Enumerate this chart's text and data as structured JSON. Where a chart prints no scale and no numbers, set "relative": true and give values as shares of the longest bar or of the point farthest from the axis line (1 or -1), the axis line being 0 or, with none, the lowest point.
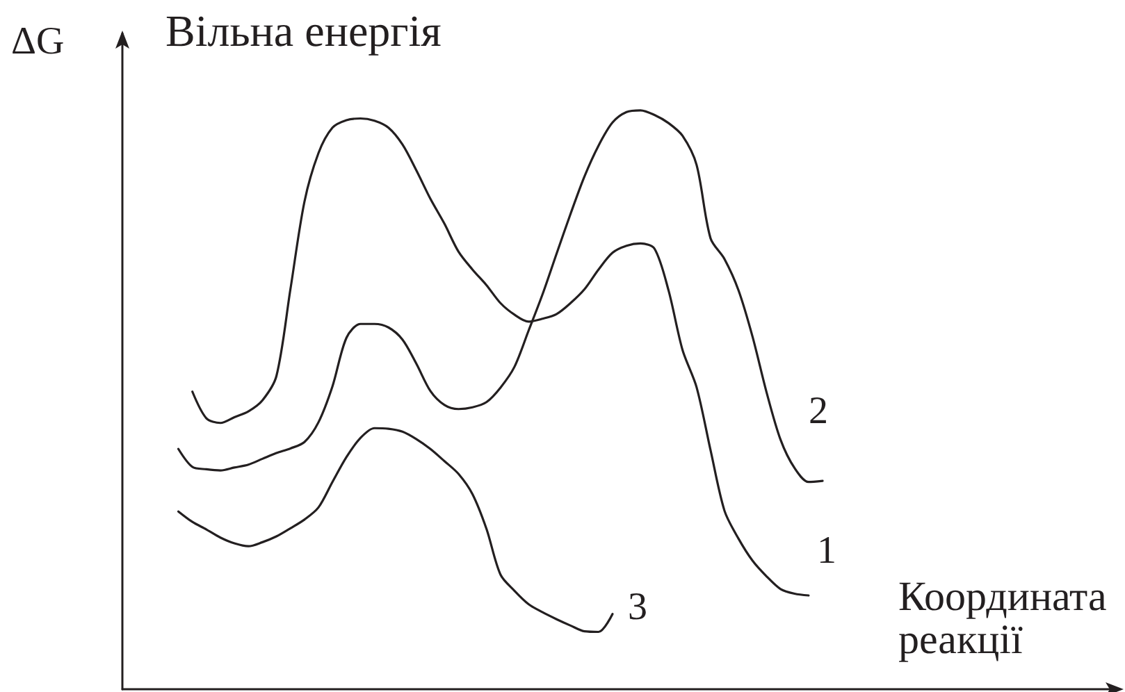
{
  "chart_data": {
    "type": "line",
    "title": "Вільна енергія",
    "ylabel": "ΔG",
    "xlabel": "Координата реакції",
    "relative": true,
    "legend": false,
    "grid": false,
    "tick_labels": false,
    "marker": "none",
    "line_style": "solid",
    "categories": [
      null,
      null,
      null,
      null,
      null,
      null,
      null,
      null,
      null,
      null,
      null,
      null,
      null,
      null,
      null,
      null,
      null,
      null,
      null,
      null,
      null,
      null,
      null,
      null,
      null,
      null,
      null,
      null,
      null,
      null,
      null,
      null,
      null,
      null,
      null,
      null,
      null,
      null,
      null,
      null,
      null,
      null,
      null,
      null,
      null,
      null,
      null,
      null,
      null,
      null,
      null,
      null,
      null,
      null,
      null,
      null,
      null,
      null,
      null,
      null,
      null,
      null,
      null,
      null,
      null,
      null,
      null,
      null,
      null,
      null,
      null,
      null
    ],
    "series": [
      {
        "name": "1",
        "color": "#231f20",
        "values": [
          null,
          null,
          null,
          null,
          null,
          0.514,
          0.468,
          0.46,
          0.47,
          0.48,
          0.499,
          0.541,
          0.691,
          0.842,
          0.926,
          0.97,
          0.983,
          0.986,
          0.982,
          0.97,
          0.941,
          0.896,
          0.847,
          0.804,
          0.756,
          0.725,
          0.698,
          0.667,
          0.647,
          0.635,
          0.64,
          0.648,
          0.667,
          0.691,
          0.725,
          0.754,
          0.766,
          0.77,
          0.761,
          0.689,
          0.586,
          0.522,
          0.413,
          0.308,
          0.26,
          0.222,
          0.195,
          0.173,
          0.165,
          0.162,
          null,
          null,
          null,
          null,
          null,
          null,
          null,
          null,
          null,
          null,
          null,
          null,
          null,
          null,
          null,
          null,
          null,
          null,
          null,
          null,
          null,
          null
        ]
      },
      {
        "name": "2",
        "color": "#231f20",
        "values": [
          null,
          null,
          null,
          null,
          0.415,
          0.384,
          0.38,
          0.378,
          0.383,
          0.388,
          0.398,
          0.408,
          0.416,
          0.427,
          0.461,
          0.523,
          0.607,
          0.631,
          0.631,
          0.625,
          0.604,
          0.562,
          0.515,
          0.491,
          0.484,
          0.487,
          0.496,
          0.521,
          0.557,
          0.619,
          0.682,
          0.752,
          0.821,
          0.886,
          0.939,
          0.979,
          0.997,
          1.0,
          0.992,
          0.978,
          0.956,
          0.906,
          0.779,
          0.743,
          0.689,
          0.609,
          0.513,
          0.431,
          0.382,
          0.358,
          0.36,
          null,
          null,
          null,
          null,
          null,
          null,
          null,
          null,
          null,
          null,
          null,
          null,
          null,
          null,
          null,
          null,
          null,
          null,
          null,
          null,
          null
        ]
      },
      {
        "name": "3",
        "color": "#231f20",
        "values": [
          null,
          null,
          null,
          null,
          0.307,
          0.289,
          0.276,
          0.262,
          0.252,
          0.247,
          0.254,
          0.264,
          0.278,
          0.293,
          0.314,
          0.358,
          0.401,
          0.434,
          0.451,
          0.45,
          0.445,
          0.432,
          0.415,
          0.394,
          0.372,
          0.337,
          0.277,
          0.198,
          0.17,
          0.147,
          0.133,
          0.121,
          0.11,
          0.1,
          0.099,
          0.13,
          null,
          null,
          null,
          null,
          null,
          null,
          null,
          null,
          null,
          null,
          null,
          null,
          null,
          null,
          null,
          null,
          null,
          null,
          null,
          null,
          null,
          null,
          null,
          null,
          null,
          null,
          null,
          null,
          null,
          null,
          null,
          null,
          null,
          null,
          null,
          null
        ]
      }
    ]
  }
}
